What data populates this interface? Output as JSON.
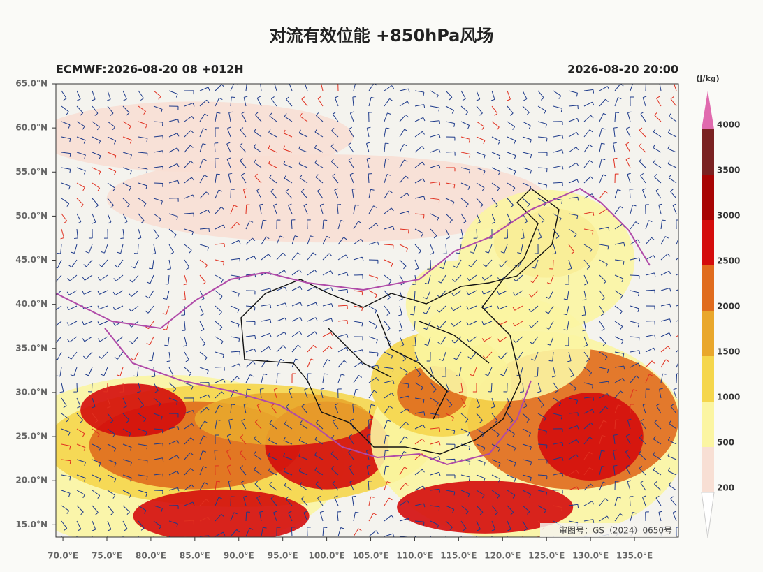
{
  "title": "对流有效位能 +850hPa风场",
  "subtitle_left": "ECMWF:2026-08-20 08 +012H",
  "subtitle_right": "2026-08-20 20:00",
  "note": "审图号：GS（2024）0650号",
  "map": {
    "xlim": [
      69.2,
      140
    ],
    "ylim": [
      13.6,
      65
    ],
    "xticks": [
      {
        "value": 70,
        "label": "70.0°E"
      },
      {
        "value": 75,
        "label": "75.0°E"
      },
      {
        "value": 80,
        "label": "80.0°E"
      },
      {
        "value": 85,
        "label": "85.0°E"
      },
      {
        "value": 90,
        "label": "90.0°E"
      },
      {
        "value": 95,
        "label": "95.0°E"
      },
      {
        "value": 100,
        "label": "100.0°E"
      },
      {
        "value": 105,
        "label": "105.0°E"
      },
      {
        "value": 110,
        "label": "110.0°E"
      },
      {
        "value": 115,
        "label": "115.0°E"
      },
      {
        "value": 120,
        "label": "120.0°E"
      },
      {
        "value": 125,
        "label": "125.0°E"
      },
      {
        "value": 130,
        "label": "130.0°E"
      },
      {
        "value": 135,
        "label": "135.0°E"
      }
    ],
    "yticks": [
      {
        "value": 15,
        "label": "15.0°N"
      },
      {
        "value": 20,
        "label": "20.0°N"
      },
      {
        "value": 25,
        "label": "25.0°N"
      },
      {
        "value": 30,
        "label": "30.0°N"
      },
      {
        "value": 35,
        "label": "35.0°N"
      },
      {
        "value": 40,
        "label": "40.0°N"
      },
      {
        "value": 45,
        "label": "45.0°N"
      },
      {
        "value": 50,
        "label": "50.0°N"
      },
      {
        "value": 55,
        "label": "55.0°N"
      },
      {
        "value": 60,
        "label": "60.0°N"
      },
      {
        "value": 65,
        "label": "65.0°N"
      }
    ]
  },
  "colorbar": {
    "unit": "(J/kg)",
    "levels": [
      200,
      500,
      1000,
      1500,
      2000,
      2500,
      3000,
      3500,
      4000
    ],
    "colors": [
      "#f8dfd4",
      "#fbf5a2",
      "#f5d64c",
      "#e9a72c",
      "#e06c1e",
      "#d40c0c",
      "#a80404",
      "#7a2222"
    ],
    "over_color": "#e06aae",
    "under_color": "#ffffff"
  }
}
